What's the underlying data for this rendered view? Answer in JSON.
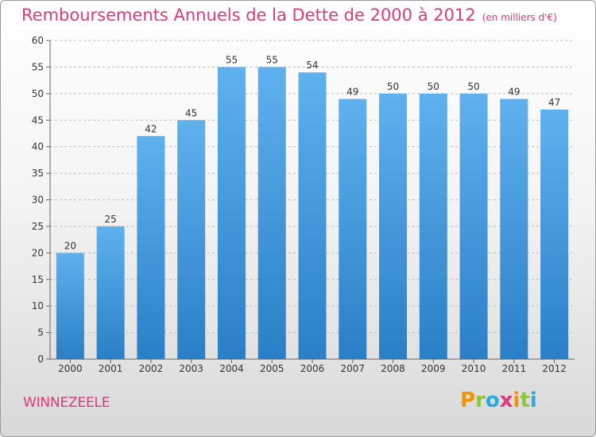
{
  "header": {
    "title": "Remboursements Annuels de la Dette de 2000 à 2012",
    "subtitle": "(en milliers d'€)"
  },
  "footer": {
    "commune": "WINNEZEELE",
    "logo_letters": [
      "P",
      "r",
      "o",
      "x",
      "i",
      "t",
      "i"
    ],
    "logo_colors": [
      "#f29400",
      "#8cc63f",
      "#29abe2",
      "#e0397a",
      "#f29400",
      "#8cc63f",
      "#29abe2"
    ]
  },
  "colors": {
    "bar_top": "#5fb1ee",
    "bar_bottom": "#2a7fc6",
    "title": "#e0397a"
  },
  "chart_data": {
    "type": "bar",
    "title": "Remboursements Annuels de la Dette de 2000 à 2012",
    "subtitle": "(en milliers d'€)",
    "xlabel": "",
    "ylabel": "",
    "categories": [
      "2000",
      "2001",
      "2002",
      "2003",
      "2004",
      "2005",
      "2006",
      "2007",
      "2008",
      "2009",
      "2010",
      "2011",
      "2012"
    ],
    "values": [
      20,
      25,
      42,
      45,
      55,
      55,
      54,
      49,
      50,
      50,
      50,
      49,
      47
    ],
    "ylim": [
      0,
      60
    ],
    "yticks": [
      0,
      5,
      10,
      15,
      20,
      25,
      30,
      35,
      40,
      45,
      50,
      55,
      60
    ],
    "grid": "horizontal dashed",
    "legend": "none"
  }
}
